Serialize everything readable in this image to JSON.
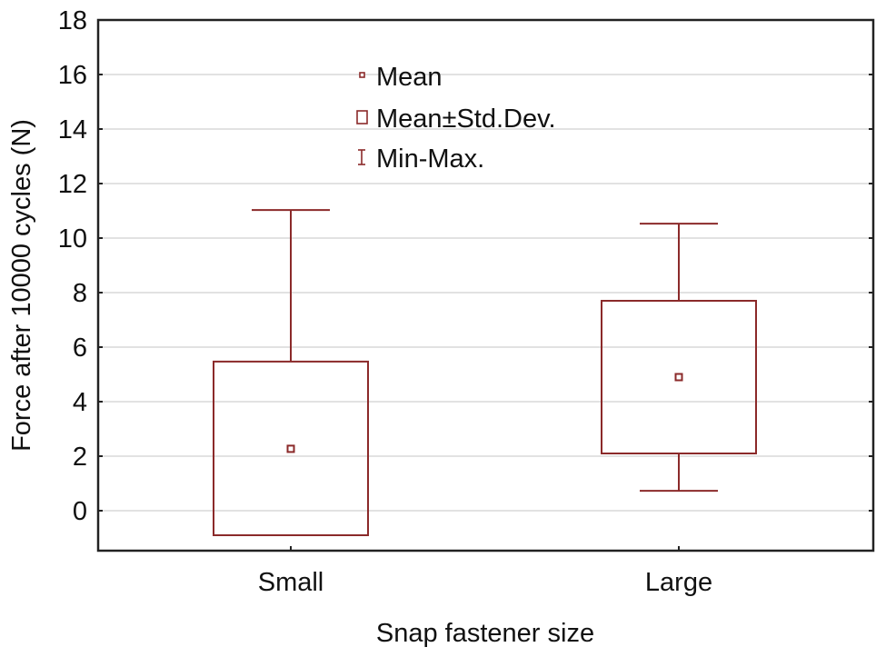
{
  "colors": {
    "series": "#8b2a2a",
    "frame": "#222222",
    "grid": "#d9d9d9",
    "text": "#111111"
  },
  "legend": {
    "items": [
      {
        "label": "Mean",
        "icon": "small-square-marker-icon"
      },
      {
        "label": "Mean±Std.Dev.",
        "icon": "box-icon"
      },
      {
        "label": "Min-Max.",
        "icon": "whisker-icon"
      }
    ]
  },
  "chart_data": {
    "type": "box",
    "title": "",
    "xlabel": "Snap fastener size",
    "ylabel": "Force after 10000 cycles (N)",
    "categories": [
      "Small",
      "Large"
    ],
    "ylim": [
      -1.5,
      18
    ],
    "yticks": [
      0,
      2,
      4,
      6,
      8,
      10,
      12,
      14,
      16,
      18
    ],
    "grid": true,
    "legend_position": "top-center inside",
    "series": [
      {
        "name": "Mean",
        "values": [
          2.27,
          4.9
        ]
      },
      {
        "name": "Mean-Std.Dev.",
        "values": [
          -0.9,
          2.1
        ]
      },
      {
        "name": "Mean+Std.Dev.",
        "values": [
          5.47,
          7.7
        ]
      },
      {
        "name": "Min",
        "values": [
          null,
          0.73
        ]
      },
      {
        "name": "Max",
        "values": [
          11.03,
          10.53
        ]
      }
    ]
  }
}
